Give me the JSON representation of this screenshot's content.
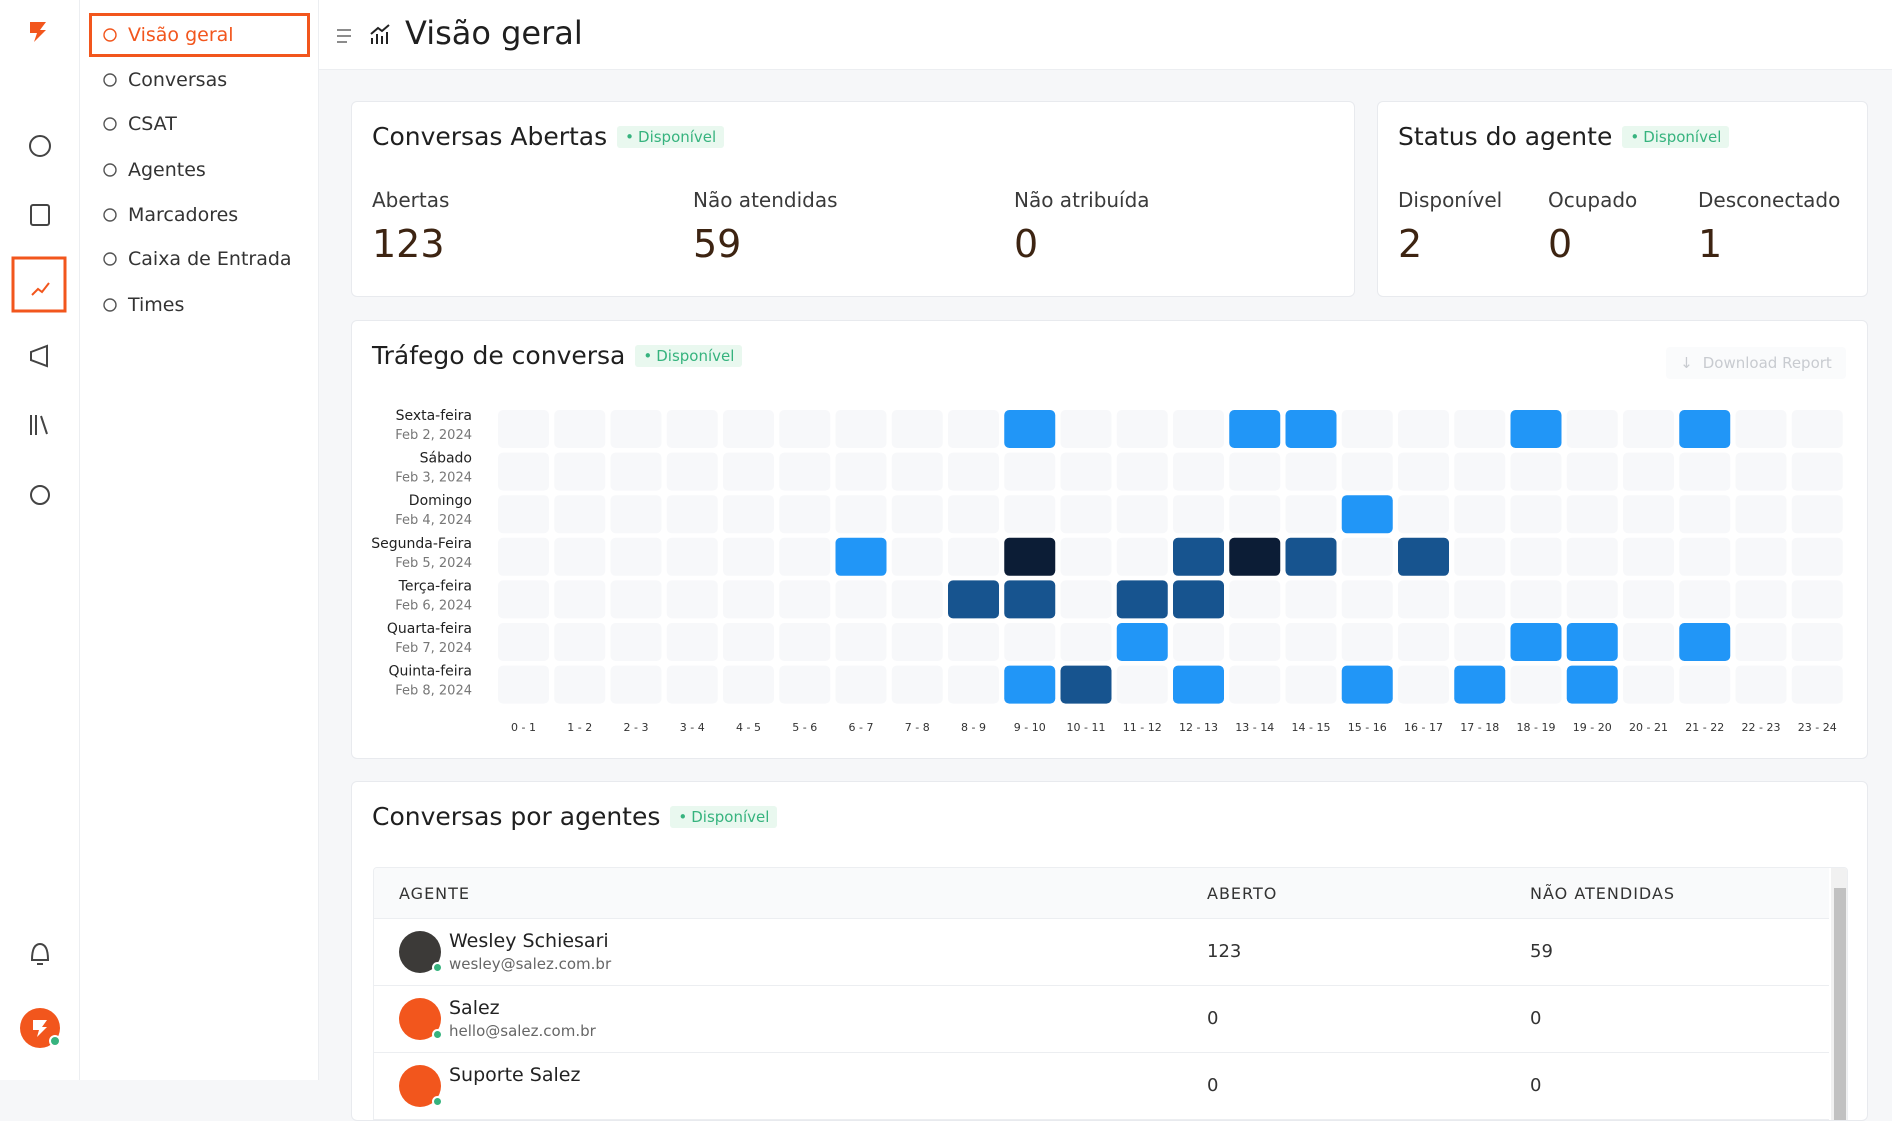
{
  "sidebar": {
    "items": [
      "Visão geral",
      "Conversas",
      "CSAT",
      "Agentes",
      "Marcadores",
      "Caixa de Entrada",
      "Times"
    ],
    "active": 0
  },
  "header": {
    "title": "Visão geral"
  },
  "open_conversations": {
    "title": "Conversas Abertas",
    "badge": "Disponível",
    "metrics": [
      {
        "label": "Abertas",
        "value": 123
      },
      {
        "label": "Não atendidas",
        "value": 59
      },
      {
        "label": "Não atribuída",
        "value": 0
      }
    ]
  },
  "agent_status": {
    "title": "Status do agente",
    "badge": "Disponível",
    "metrics": [
      {
        "label": "Disponível",
        "value": 2
      },
      {
        "label": "Ocupado",
        "value": 0
      },
      {
        "label": "Desconectado",
        "value": 1
      }
    ]
  },
  "traffic": {
    "title": "Tráfego de conversa",
    "badge": "Disponível",
    "button": "Download Report",
    "level_colors": [
      "#f7f8fa",
      "#2196f7",
      "#17548f",
      "#0c1d36"
    ],
    "hours": [
      "0 - 1",
      "1 - 2",
      "2 - 3",
      "3 - 4",
      "4 - 5",
      "5 - 6",
      "6 - 7",
      "7 - 8",
      "8 - 9",
      "9 - 10",
      "10 - 11",
      "11 - 12",
      "12 - 13",
      "13 - 14",
      "14 - 15",
      "15 - 16",
      "16 - 17",
      "17 - 18",
      "18 - 19",
      "19 - 20",
      "20 - 21",
      "21 - 22",
      "22 - 23",
      "23 - 24"
    ],
    "rows": [
      {
        "day": "Sexta-feira",
        "date": "Feb 2, 2024",
        "levels": [
          0,
          0,
          0,
          0,
          0,
          0,
          0,
          0,
          0,
          1,
          0,
          0,
          0,
          1,
          1,
          0,
          0,
          0,
          1,
          0,
          0,
          1,
          0,
          0
        ]
      },
      {
        "day": "Sábado",
        "date": "Feb 3, 2024",
        "levels": [
          0,
          0,
          0,
          0,
          0,
          0,
          0,
          0,
          0,
          0,
          0,
          0,
          0,
          0,
          0,
          0,
          0,
          0,
          0,
          0,
          0,
          0,
          0,
          0
        ]
      },
      {
        "day": "Domingo",
        "date": "Feb 4, 2024",
        "levels": [
          0,
          0,
          0,
          0,
          0,
          0,
          0,
          0,
          0,
          0,
          0,
          0,
          0,
          0,
          0,
          1,
          0,
          0,
          0,
          0,
          0,
          0,
          0,
          0
        ]
      },
      {
        "day": "Segunda-Feira",
        "date": "Feb 5, 2024",
        "levels": [
          0,
          0,
          0,
          0,
          0,
          0,
          1,
          0,
          0,
          3,
          0,
          0,
          2,
          3,
          2,
          0,
          2,
          0,
          0,
          0,
          0,
          0,
          0,
          0
        ]
      },
      {
        "day": "Terça-feira",
        "date": "Feb 6, 2024",
        "levels": [
          0,
          0,
          0,
          0,
          0,
          0,
          0,
          0,
          2,
          2,
          0,
          2,
          2,
          0,
          0,
          0,
          0,
          0,
          0,
          0,
          0,
          0,
          0,
          0
        ]
      },
      {
        "day": "Quarta-feira",
        "date": "Feb 7, 2024",
        "levels": [
          0,
          0,
          0,
          0,
          0,
          0,
          0,
          0,
          0,
          0,
          0,
          1,
          0,
          0,
          0,
          0,
          0,
          0,
          1,
          1,
          0,
          1,
          0,
          0
        ]
      },
      {
        "day": "Quinta-feira",
        "date": "Feb 8, 2024",
        "levels": [
          0,
          0,
          0,
          0,
          0,
          0,
          0,
          0,
          0,
          1,
          2,
          0,
          1,
          0,
          0,
          1,
          0,
          1,
          0,
          1,
          0,
          0,
          0,
          0
        ]
      }
    ]
  },
  "agents_table": {
    "title": "Conversas por agentes",
    "badge": "Disponível",
    "columns": [
      "AGENTE",
      "ABERTO",
      "NÃO ATENDIDAS"
    ],
    "rows": [
      {
        "name": "Wesley Schiesari",
        "email": "wesley@salez.com.br",
        "open": 123,
        "unattended": 59
      },
      {
        "name": "Salez",
        "email": "hello@salez.com.br",
        "open": 0,
        "unattended": 0
      },
      {
        "name": "Suporte Salez",
        "open": 0,
        "unattended": 0
      }
    ]
  }
}
